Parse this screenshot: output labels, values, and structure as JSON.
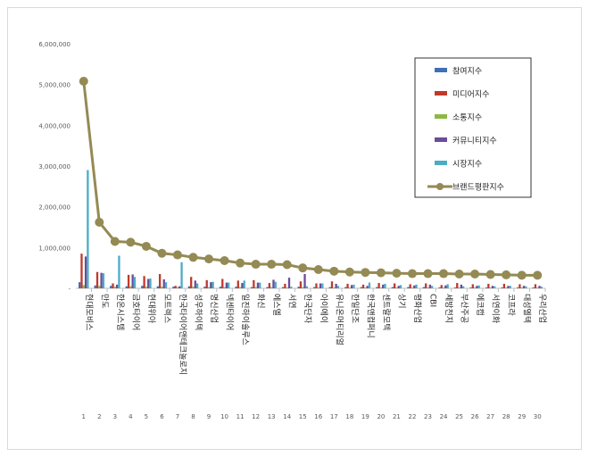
{
  "chart_data": {
    "type": "bar",
    "title": "",
    "xlabel": "",
    "ylabel": "",
    "ylim": [
      0,
      6000000
    ],
    "yticks": [
      0,
      1000000,
      2000000,
      3000000,
      4000000,
      5000000,
      6000000
    ],
    "ytick_labels": [
      "-",
      "1,000,000",
      "2,000,000",
      "3,000,000",
      "4,000,000",
      "5,000,000",
      "6,000,000"
    ],
    "grid": false,
    "legend_position": "top-right",
    "categories": [
      "현대모비스",
      "만도",
      "한온시스템",
      "금호타이어",
      "현대위아",
      "모트렉스",
      "한국타이어앤테크놀로지",
      "성우하이텍",
      "명신산업",
      "넥센타이어",
      "일진하이솔루스",
      "화신",
      "에스엘",
      "서연",
      "한국단자",
      "아이에이",
      "유니온머티리얼",
      "한일단조",
      "한국앤컴퍼니",
      "센트랄모텍",
      "상기",
      "평화산업",
      "CBI",
      "세방전지",
      "부산주공",
      "에코캡",
      "서연이화",
      "코프라",
      "대성엘텍",
      "우리산업"
    ],
    "ranks": [
      "1",
      "2",
      "3",
      "4",
      "5",
      "6",
      "7",
      "8",
      "9",
      "10",
      "11",
      "12",
      "13",
      "14",
      "15",
      "16",
      "17",
      "18",
      "19",
      "20",
      "21",
      "22",
      "23",
      "24",
      "25",
      "26",
      "27",
      "28",
      "29",
      "30"
    ],
    "series": [
      {
        "name": "참여지수",
        "kind": "bar",
        "color": "#3f6fb5",
        "values": [
          150000,
          70000,
          60000,
          50000,
          60000,
          50000,
          40000,
          50000,
          40000,
          40000,
          40000,
          30000,
          30000,
          30000,
          40000,
          30000,
          30000,
          30000,
          30000,
          30000,
          30000,
          30000,
          30000,
          20000,
          20000,
          20000,
          20000,
          20000,
          20000,
          20000
        ]
      },
      {
        "name": "미디어지수",
        "kind": "bar",
        "color": "#c0392b",
        "values": [
          850000,
          400000,
          120000,
          330000,
          300000,
          350000,
          60000,
          280000,
          200000,
          230000,
          190000,
          200000,
          130000,
          110000,
          170000,
          120000,
          170000,
          110000,
          90000,
          130000,
          120000,
          100000,
          120000,
          80000,
          130000,
          100000,
          110000,
          110000,
          100000,
          100000
        ]
      },
      {
        "name": "소통지수",
        "kind": "bar",
        "color": "#8db843",
        "values": [
          80000,
          60000,
          40000,
          50000,
          40000,
          40000,
          30000,
          40000,
          30000,
          30000,
          30000,
          30000,
          30000,
          20000,
          30000,
          20000,
          20000,
          20000,
          20000,
          20000,
          20000,
          20000,
          20000,
          20000,
          20000,
          20000,
          20000,
          20000,
          20000,
          20000
        ]
      },
      {
        "name": "커뮤니티지수",
        "kind": "bar",
        "color": "#6a4c9c",
        "values": [
          780000,
          380000,
          90000,
          340000,
          230000,
          220000,
          50000,
          190000,
          150000,
          140000,
          130000,
          140000,
          210000,
          260000,
          350000,
          120000,
          110000,
          80000,
          60000,
          90000,
          60000,
          70000,
          90000,
          70000,
          90000,
          60000,
          60000,
          60000,
          60000,
          60000
        ]
      },
      {
        "name": "시장지수",
        "kind": "bar",
        "color": "#4bacc6",
        "values": [
          2900000,
          370000,
          800000,
          280000,
          240000,
          150000,
          640000,
          120000,
          160000,
          140000,
          190000,
          140000,
          160000,
          40000,
          50000,
          120000,
          60000,
          90000,
          140000,
          110000,
          80000,
          90000,
          60000,
          100000,
          50000,
          70000,
          50000,
          60000,
          50000,
          40000
        ]
      },
      {
        "name": "브랜드평판지수",
        "kind": "line",
        "color": "#948a54",
        "values": [
          5080000,
          1620000,
          1150000,
          1130000,
          1030000,
          860000,
          820000,
          760000,
          720000,
          680000,
          620000,
          590000,
          590000,
          580000,
          500000,
          460000,
          420000,
          400000,
          390000,
          380000,
          370000,
          360000,
          360000,
          360000,
          350000,
          350000,
          340000,
          330000,
          320000,
          320000
        ]
      }
    ]
  }
}
